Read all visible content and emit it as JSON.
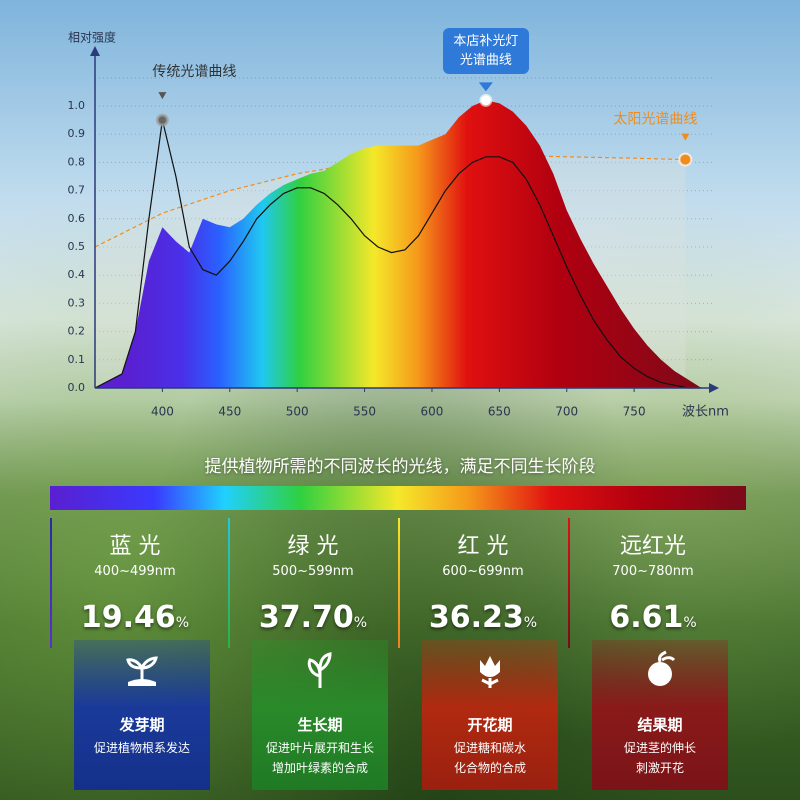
{
  "chart_data": {
    "type": "spectrum",
    "y_label": "相对强度",
    "x_label": "波长nm",
    "xlim": [
      350,
      810
    ],
    "ylim": [
      0,
      1.15
    ],
    "xticks": [
      400,
      450,
      500,
      550,
      600,
      650,
      700,
      750
    ],
    "yticks": [
      {
        "value": 0,
        "label": "0.0"
      },
      {
        "value": 0.1,
        "label": "0.1"
      },
      {
        "value": 0.2,
        "label": "0.2"
      },
      {
        "value": 0.3,
        "label": "0.3"
      },
      {
        "value": 0.4,
        "label": "0.4"
      },
      {
        "value": 0.5,
        "label": "0.5"
      },
      {
        "value": 0.6,
        "label": "0.6"
      },
      {
        "value": 0.7,
        "label": "0.7"
      },
      {
        "value": 0.8,
        "label": "0.8"
      },
      {
        "value": 0.9,
        "label": "0.9"
      },
      {
        "value": 1.0,
        "label": "1.0"
      }
    ],
    "grid": true,
    "series": [
      {
        "name": "太阳光谱曲线",
        "style": "dashed",
        "color": "#f08c1e",
        "x": [
          350,
          400,
          450,
          500,
          550,
          600,
          650,
          700,
          750,
          788
        ],
        "values": [
          0.5,
          0.62,
          0.7,
          0.76,
          0.8,
          0.82,
          0.825,
          0.82,
          0.815,
          0.81
        ]
      },
      {
        "name": "本店补光灯光谱曲线",
        "style": "area",
        "x": [
          350,
          370,
          380,
          390,
          400,
          410,
          420,
          430,
          440,
          450,
          460,
          470,
          480,
          490,
          500,
          510,
          520,
          530,
          540,
          550,
          560,
          570,
          580,
          590,
          600,
          610,
          620,
          630,
          640,
          650,
          660,
          670,
          680,
          690,
          700,
          710,
          720,
          730,
          740,
          750,
          760,
          770,
          780,
          790,
          800
        ],
        "values": [
          0,
          0.05,
          0.2,
          0.45,
          0.57,
          0.52,
          0.48,
          0.6,
          0.58,
          0.57,
          0.6,
          0.65,
          0.69,
          0.72,
          0.74,
          0.76,
          0.77,
          0.8,
          0.83,
          0.85,
          0.86,
          0.86,
          0.86,
          0.86,
          0.88,
          0.9,
          0.96,
          1.0,
          1.02,
          1.01,
          0.98,
          0.93,
          0.86,
          0.76,
          0.63,
          0.53,
          0.44,
          0.36,
          0.28,
          0.21,
          0.15,
          0.1,
          0.06,
          0.03,
          0
        ]
      },
      {
        "name": "传统光谱曲线",
        "style": "line",
        "color": "#111111",
        "x": [
          350,
          370,
          380,
          390,
          400,
          410,
          420,
          430,
          440,
          450,
          460,
          470,
          480,
          490,
          500,
          510,
          520,
          530,
          540,
          550,
          560,
          570,
          580,
          590,
          600,
          610,
          620,
          630,
          640,
          650,
          660,
          670,
          680,
          690,
          700,
          710,
          720,
          730,
          740,
          750,
          760,
          770,
          780,
          790,
          800
        ],
        "values": [
          0,
          0.05,
          0.2,
          0.6,
          0.95,
          0.75,
          0.5,
          0.42,
          0.4,
          0.45,
          0.52,
          0.6,
          0.65,
          0.69,
          0.71,
          0.71,
          0.69,
          0.65,
          0.6,
          0.54,
          0.5,
          0.48,
          0.49,
          0.54,
          0.62,
          0.7,
          0.76,
          0.8,
          0.82,
          0.82,
          0.8,
          0.74,
          0.65,
          0.54,
          0.43,
          0.33,
          0.24,
          0.17,
          0.11,
          0.07,
          0.04,
          0.02,
          0.01,
          0,
          0
        ]
      }
    ]
  },
  "headline": "提供植物所需的不同波长的光线，满足不同生长阶段",
  "bands": [
    {
      "name": "蓝 光",
      "range": "400~499nm",
      "percent": "19.46",
      "unit": "%",
      "stage": "发芽期",
      "description": [
        "促进植物根系发达"
      ]
    },
    {
      "name": "绿 光",
      "range": "500~599nm",
      "percent": "37.70",
      "unit": "%",
      "stage": "生长期",
      "description": [
        "促进叶片展开和生长",
        "增加叶绿素的合成"
      ]
    },
    {
      "name": "红 光",
      "range": "600~699nm",
      "percent": "36.23",
      "unit": "%",
      "stage": "开花期",
      "description": [
        "促进糖和碳水",
        "化合物的合成"
      ]
    },
    {
      "name": "远红光",
      "range": "700~780nm",
      "percent": "6.61",
      "unit": "%",
      "stage": "结果期",
      "description": [
        "促进茎的伸长",
        "刺激开花"
      ]
    }
  ]
}
